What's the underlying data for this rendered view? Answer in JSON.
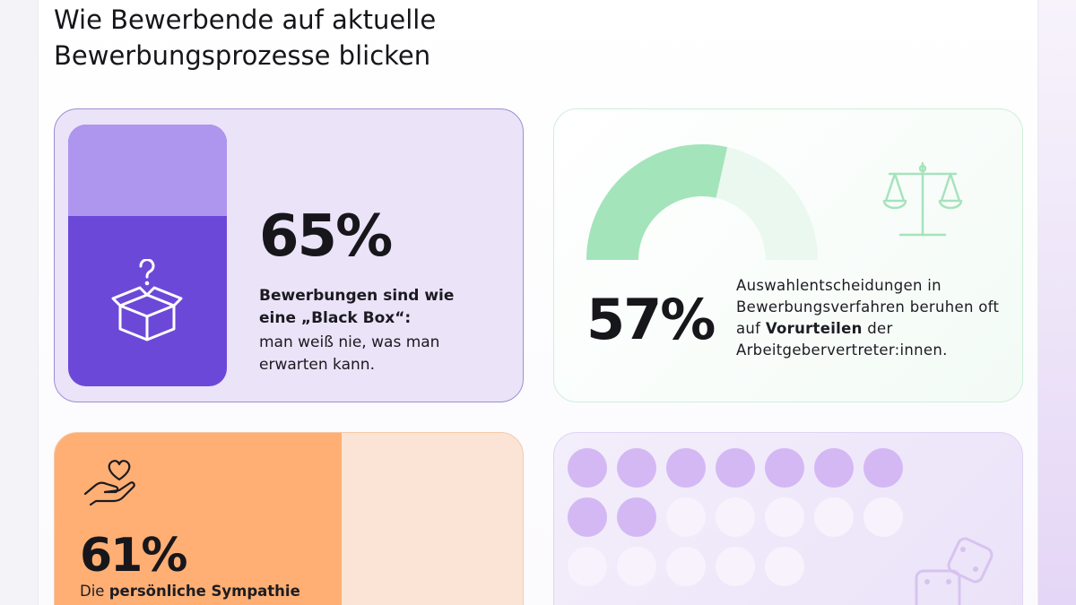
{
  "page": {
    "title_line1": "Wie Bewerbende auf aktuelle",
    "title_line2": "Bewerbungsprozesse blicken"
  },
  "stats": [
    {
      "percent": "65%",
      "value": 65,
      "bold_text": "Bewerbungen sind wie eine „Black Box“:",
      "text": "man weiß nie, was man erwarten kann.",
      "icon": "box-question-icon",
      "color_fill": "#6c48d8",
      "color_empty": "#ae95ee"
    },
    {
      "percent": "57%",
      "value": 57,
      "text_before": "Auswahlentscheidungen in Bewerbungsverfahren beruhen oft auf",
      "bold_text": "Vorurteilen",
      "text_after": "der Arbeitgebervertreter:innen.",
      "icon": "scales-icon",
      "color_fill": "#a8e6bf",
      "color_empty": "#eaf8ef"
    },
    {
      "percent": "61%",
      "value": 61,
      "text_before": "Die",
      "bold_text": "persönliche Sympathie",
      "icon": "hand-heart-icon",
      "color_fill": "#ffaf74",
      "color_empty": "#fbe4d6"
    },
    {
      "dots_filled": 9,
      "dots_total": 19,
      "icon": "dice-icon",
      "color_fill": "#d4b8f4",
      "color_empty": "#f8f2fc"
    }
  ]
}
